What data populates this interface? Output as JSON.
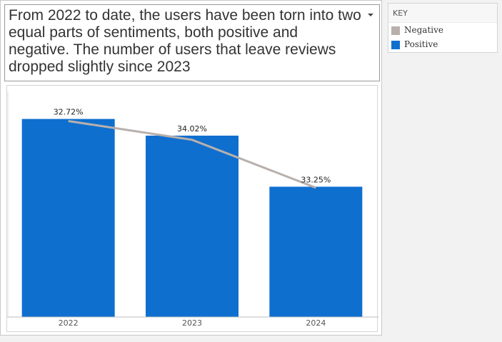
{
  "title": "From 2022 to date, the users have been torn into two equal parts of sentiments, both positive and negative. The number of users that leave reviews dropped slightly since 2023",
  "key": {
    "header": "KEY",
    "items": [
      {
        "label": "Negative",
        "color": "#b8b0ac"
      },
      {
        "label": "Positive",
        "color": "#0f6fcf"
      }
    ]
  },
  "chart_data": {
    "type": "bar",
    "categories": [
      "2022",
      "2023",
      "2024"
    ],
    "series": [
      {
        "name": "Positive",
        "type": "bar",
        "values": [
          1.9,
          1.74,
          1.25
        ],
        "color": "#0f6fcf"
      },
      {
        "name": "Negative",
        "type": "line",
        "values": [
          1.88,
          1.7,
          1.24
        ],
        "color": "#b8b0ac"
      }
    ],
    "data_labels": [
      "32.72%",
      "34.02%",
      "33.25%"
    ],
    "ylim": [
      0,
      2
    ],
    "grid": false,
    "legend": "right"
  }
}
